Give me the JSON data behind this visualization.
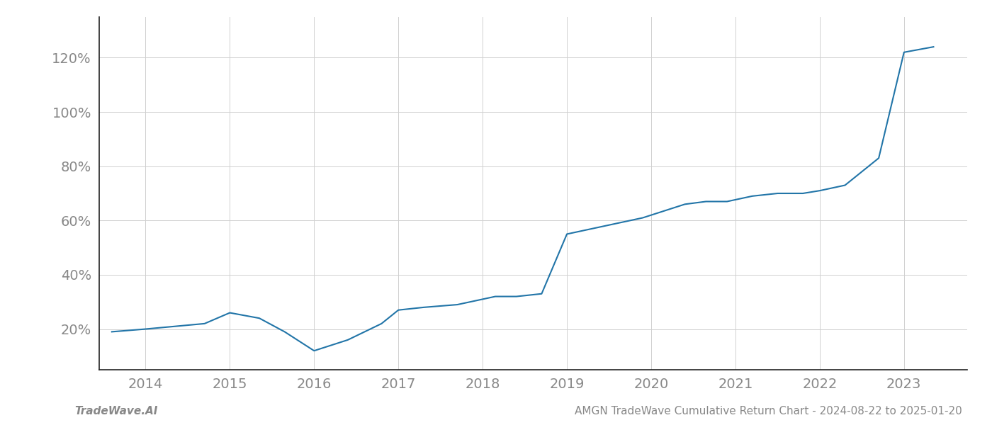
{
  "x_years": [
    2013.6,
    2014.0,
    2014.35,
    2014.7,
    2015.0,
    2015.35,
    2015.65,
    2016.0,
    2016.4,
    2016.8,
    2017.0,
    2017.3,
    2017.7,
    2018.0,
    2018.15,
    2018.4,
    2018.7,
    2019.0,
    2019.3,
    2019.6,
    2019.9,
    2020.1,
    2020.4,
    2020.65,
    2020.9,
    2021.2,
    2021.5,
    2021.8,
    2022.0,
    2022.3,
    2022.7,
    2023.0,
    2023.35
  ],
  "y_values": [
    19,
    20,
    21,
    22,
    26,
    24,
    19,
    12,
    16,
    22,
    27,
    28,
    29,
    31,
    32,
    32,
    33,
    55,
    57,
    59,
    61,
    63,
    66,
    67,
    67,
    69,
    70,
    70,
    71,
    73,
    83,
    122,
    124
  ],
  "line_color": "#2275a8",
  "line_width": 1.5,
  "background_color": "#ffffff",
  "grid_color": "#d0d0d0",
  "ytick_labels": [
    "20%",
    "40%",
    "60%",
    "80%",
    "100%",
    "120%"
  ],
  "ytick_values": [
    20,
    40,
    60,
    80,
    100,
    120
  ],
  "xtick_labels": [
    "2014",
    "2015",
    "2016",
    "2017",
    "2018",
    "2019",
    "2020",
    "2021",
    "2022",
    "2023"
  ],
  "xtick_values": [
    2014,
    2015,
    2016,
    2017,
    2018,
    2019,
    2020,
    2021,
    2022,
    2023
  ],
  "xlim": [
    2013.45,
    2023.75
  ],
  "ylim": [
    5,
    135
  ],
  "footer_left": "TradeWave.AI",
  "footer_right": "AMGN TradeWave Cumulative Return Chart - 2024-08-22 to 2025-01-20",
  "tick_color": "#888888",
  "tick_fontsize": 14,
  "footer_fontsize": 11,
  "left_spine_color": "#222222",
  "bottom_spine_color": "#222222"
}
